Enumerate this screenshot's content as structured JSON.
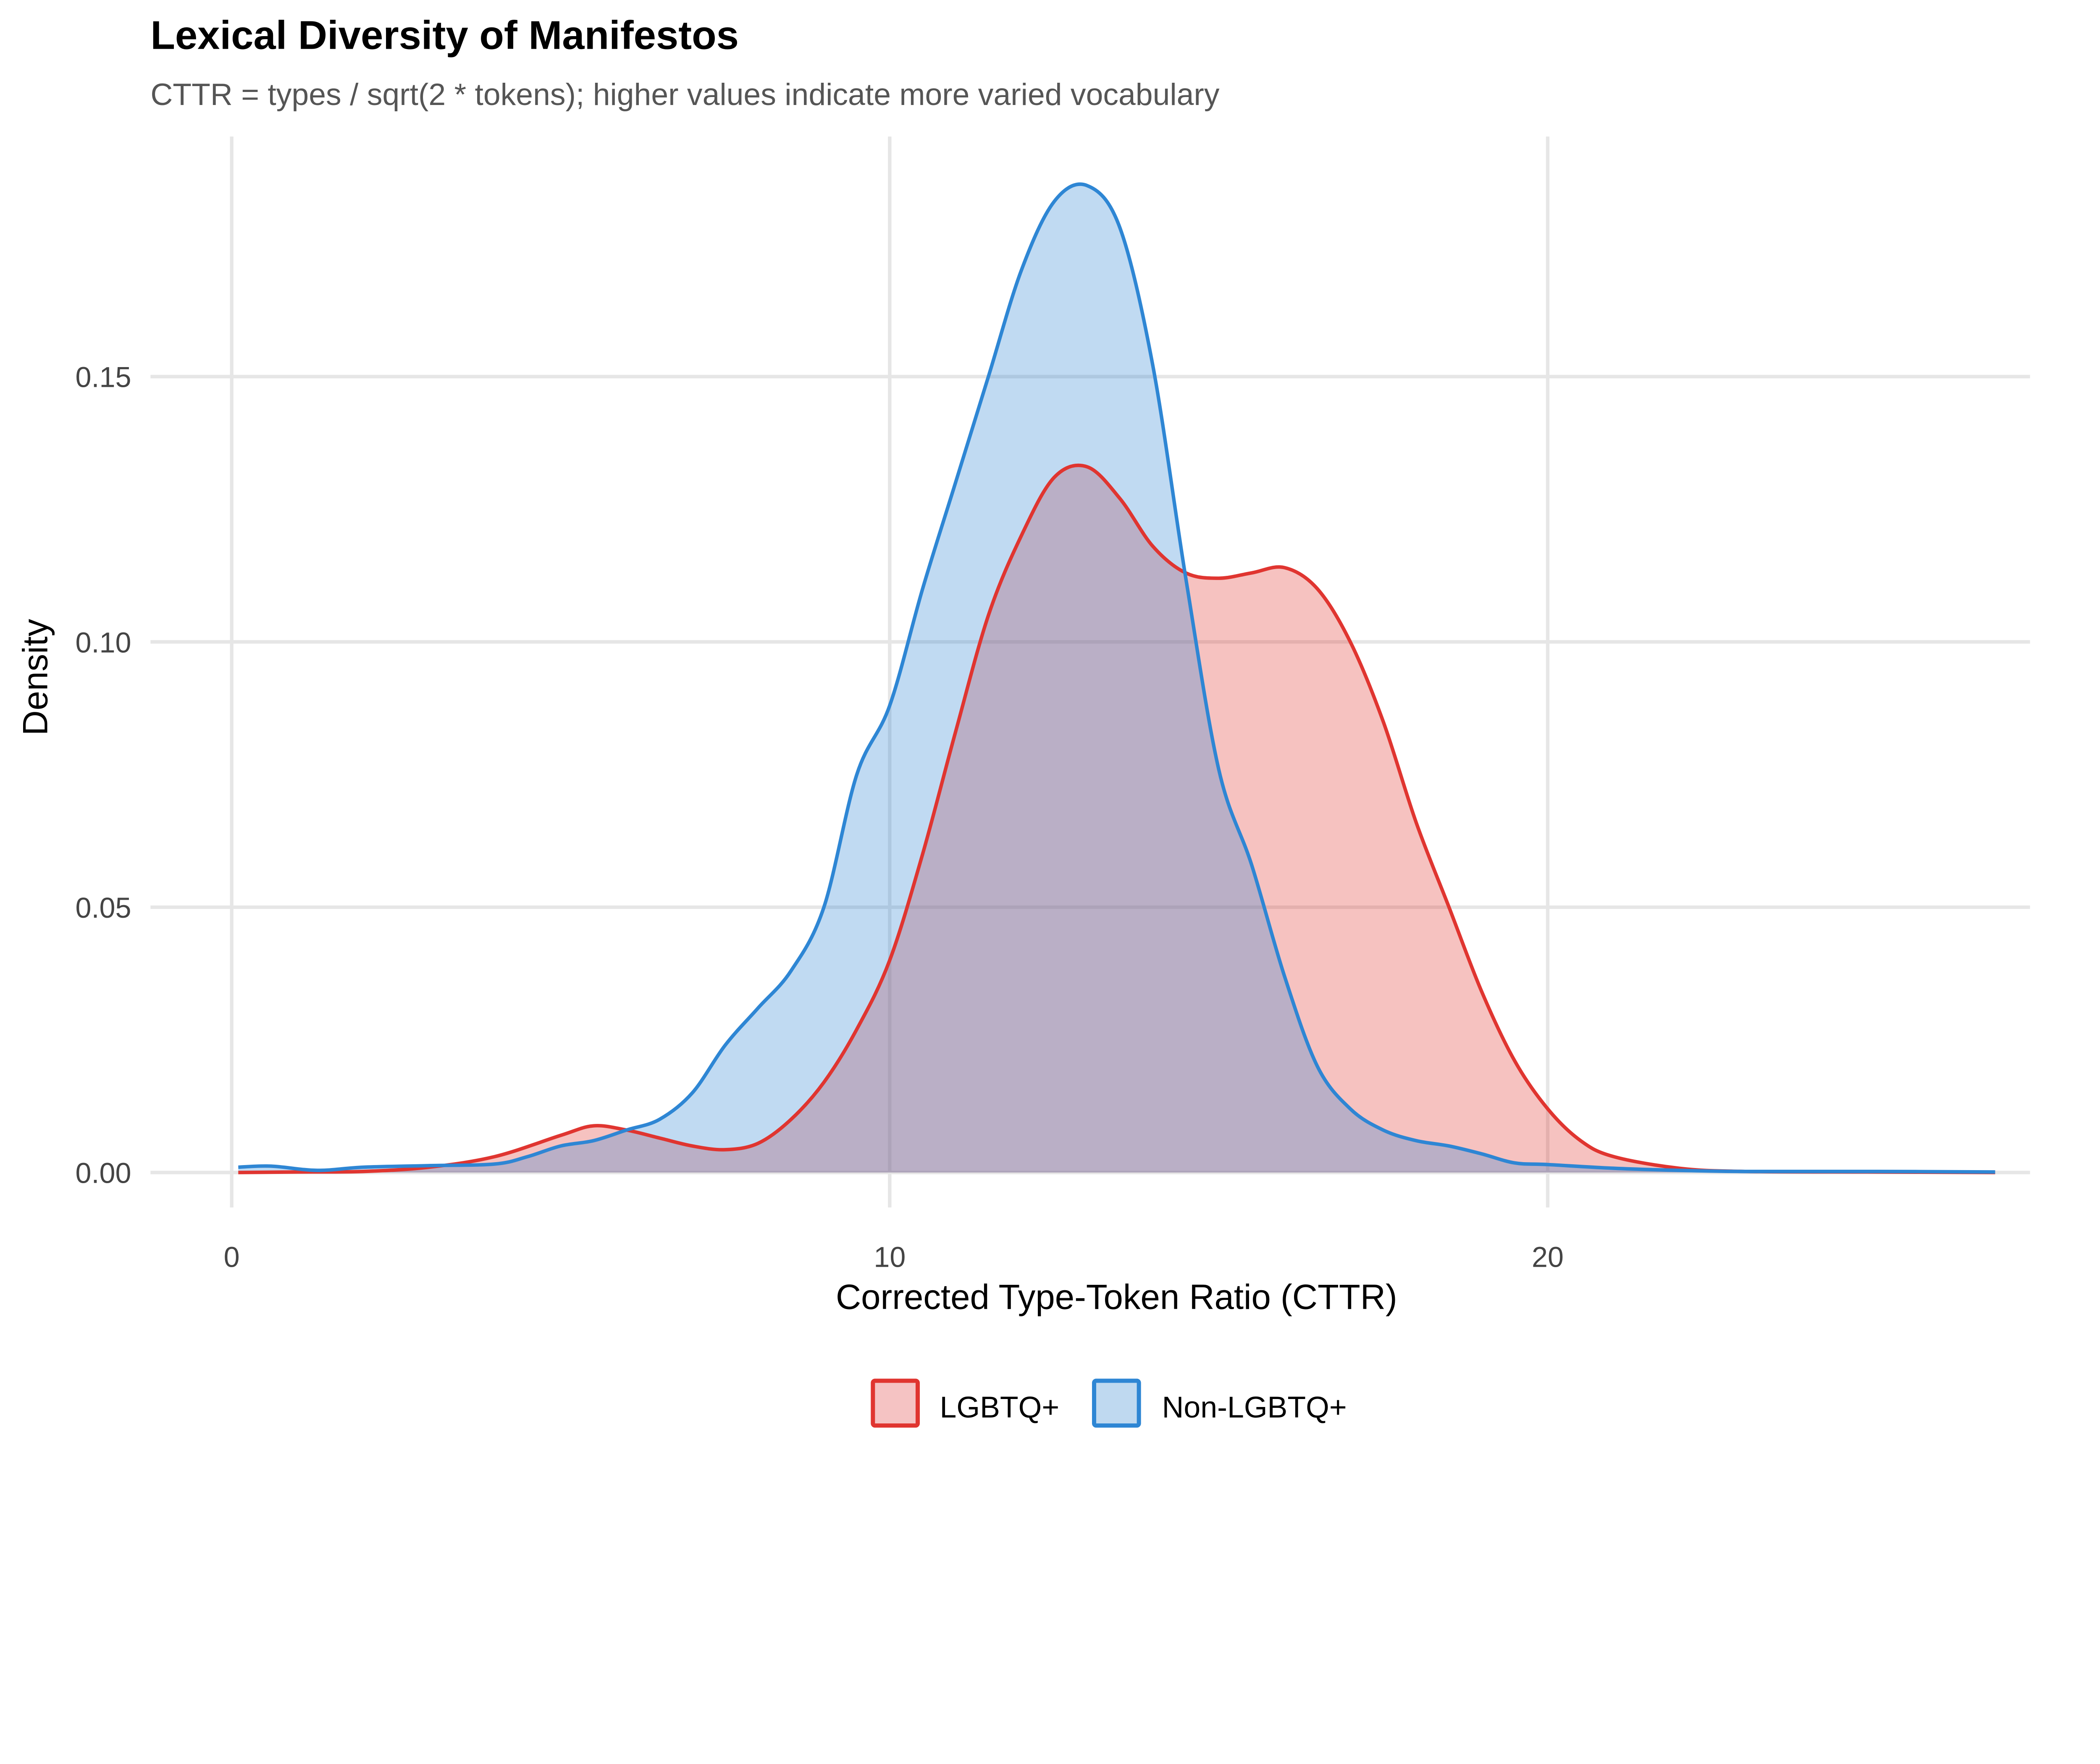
{
  "chart_data": {
    "type": "area",
    "subtype": "density",
    "title": "Lexical Diversity of Manifestos",
    "subtitle": "CTTR = types / sqrt(2 * tokens); higher values indicate more varied vocabulary",
    "xlabel": "Corrected Type-Token Ratio (CTTR)",
    "ylabel": "Density",
    "xlim": [
      0,
      27
    ],
    "ylim": [
      0,
      0.19
    ],
    "x_ticks": [
      0,
      10,
      20
    ],
    "x_tick_labels": [
      "0",
      "10",
      "20"
    ],
    "y_ticks": [
      0,
      0.05,
      0.1,
      0.15
    ],
    "y_tick_labels": [
      "0.00",
      "0.05",
      "0.10",
      "0.15"
    ],
    "grid": true,
    "legend_position": "bottom",
    "series": [
      {
        "name": "LGBTQ+",
        "line_color": "#E03530",
        "fill_color": "#F5C3C3",
        "points": [
          [
            0.1,
            0
          ],
          [
            1,
            0.0001
          ],
          [
            2,
            0.0002
          ],
          [
            3,
            0.001
          ],
          [
            4,
            0.003
          ],
          [
            5,
            0.007
          ],
          [
            5.5,
            0.0088
          ],
          [
            6,
            0.008
          ],
          [
            6.5,
            0.0065
          ],
          [
            7,
            0.005
          ],
          [
            7.5,
            0.0043
          ],
          [
            8,
            0.0055
          ],
          [
            8.5,
            0.01
          ],
          [
            9,
            0.017
          ],
          [
            9.5,
            0.027
          ],
          [
            10,
            0.04
          ],
          [
            10.5,
            0.06
          ],
          [
            11,
            0.083
          ],
          [
            11.5,
            0.105
          ],
          [
            12,
            0.12
          ],
          [
            12.5,
            0.131
          ],
          [
            13,
            0.133
          ],
          [
            13.5,
            0.127
          ],
          [
            14,
            0.118
          ],
          [
            14.5,
            0.113
          ],
          [
            15,
            0.112
          ],
          [
            15.5,
            0.113
          ],
          [
            16,
            0.114
          ],
          [
            16.5,
            0.11
          ],
          [
            17,
            0.1
          ],
          [
            17.5,
            0.085
          ],
          [
            18,
            0.066
          ],
          [
            18.5,
            0.05
          ],
          [
            19,
            0.034
          ],
          [
            19.5,
            0.021
          ],
          [
            20,
            0.012
          ],
          [
            20.5,
            0.006
          ],
          [
            21,
            0.003
          ],
          [
            22,
            0.0008
          ],
          [
            23,
            0.0002
          ],
          [
            25,
            0.0001
          ],
          [
            26.8,
            0
          ]
        ]
      },
      {
        "name": "Non-LGBTQ+",
        "line_color": "#2E86D4",
        "fill_color": "#BFD9F0",
        "points": [
          [
            0.1,
            0.001
          ],
          [
            0.6,
            0.0012
          ],
          [
            1.3,
            0.0004
          ],
          [
            2,
            0.001
          ],
          [
            3,
            0.0013
          ],
          [
            4,
            0.0016
          ],
          [
            4.5,
            0.003
          ],
          [
            5,
            0.005
          ],
          [
            5.5,
            0.006
          ],
          [
            6,
            0.008
          ],
          [
            6.5,
            0.01
          ],
          [
            7,
            0.015
          ],
          [
            7.5,
            0.024
          ],
          [
            8,
            0.031
          ],
          [
            8.5,
            0.038
          ],
          [
            9,
            0.05
          ],
          [
            9.5,
            0.075
          ],
          [
            10,
            0.088
          ],
          [
            10.5,
            0.11
          ],
          [
            11,
            0.13
          ],
          [
            11.5,
            0.15
          ],
          [
            12,
            0.17
          ],
          [
            12.5,
            0.183
          ],
          [
            13,
            0.186
          ],
          [
            13.5,
            0.178
          ],
          [
            14,
            0.152
          ],
          [
            14.5,
            0.112
          ],
          [
            15,
            0.076
          ],
          [
            15.5,
            0.058
          ],
          [
            16,
            0.037
          ],
          [
            16.5,
            0.02
          ],
          [
            17,
            0.012
          ],
          [
            17.5,
            0.008
          ],
          [
            18,
            0.006
          ],
          [
            18.5,
            0.005
          ],
          [
            19,
            0.0035
          ],
          [
            19.5,
            0.0018
          ],
          [
            20,
            0.0015
          ],
          [
            21,
            0.0008
          ],
          [
            22,
            0.0004
          ],
          [
            23,
            0.0002
          ],
          [
            25,
            0.0002
          ],
          [
            26.8,
            0.0001
          ]
        ]
      }
    ]
  }
}
